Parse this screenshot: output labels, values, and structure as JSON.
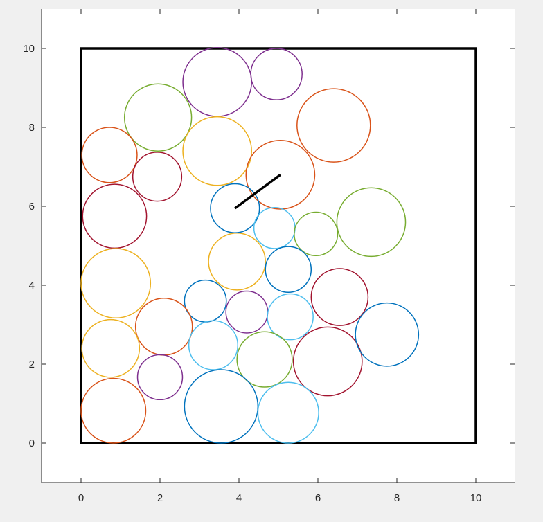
{
  "chart_data": {
    "type": "scatter",
    "title": "",
    "xlabel": "",
    "ylabel": "",
    "xlim": [
      -1,
      11
    ],
    "ylim": [
      -1,
      11
    ],
    "xticks": [
      0,
      2,
      4,
      6,
      8,
      10
    ],
    "yticks": [
      0,
      2,
      4,
      6,
      8,
      10
    ],
    "xtick_labels": [
      "0",
      "2",
      "4",
      "6",
      "8",
      "10"
    ],
    "ytick_labels": [
      "0",
      "2",
      "4",
      "6",
      "8",
      "10"
    ],
    "grid": false,
    "legend": "none",
    "boundary_box": {
      "x": [
        0,
        10
      ],
      "y": [
        0,
        10
      ],
      "color": "#000000"
    },
    "segment": {
      "x": [
        3.9,
        5.05
      ],
      "y": [
        5.95,
        6.8
      ],
      "color": "#000000"
    },
    "colors": {
      "blue": "#0072BD",
      "orange": "#D95319",
      "yellow": "#EDB120",
      "purple": "#7E2F8E",
      "green": "#77AC30",
      "cyan": "#4DBEEE",
      "darkred": "#A2142F"
    },
    "circles": [
      {
        "x": 3.45,
        "y": 9.15,
        "r": 0.87,
        "color": "purple"
      },
      {
        "x": 4.95,
        "y": 9.35,
        "r": 0.65,
        "color": "purple"
      },
      {
        "x": 1.95,
        "y": 8.25,
        "r": 0.85,
        "color": "green"
      },
      {
        "x": 6.4,
        "y": 8.05,
        "r": 0.93,
        "color": "orange"
      },
      {
        "x": 0.72,
        "y": 7.3,
        "r": 0.7,
        "color": "orange"
      },
      {
        "x": 3.45,
        "y": 7.4,
        "r": 0.87,
        "color": "yellow"
      },
      {
        "x": 1.93,
        "y": 6.75,
        "r": 0.62,
        "color": "darkred"
      },
      {
        "x": 5.05,
        "y": 6.8,
        "r": 0.87,
        "color": "orange"
      },
      {
        "x": 0.85,
        "y": 5.75,
        "r": 0.81,
        "color": "darkred"
      },
      {
        "x": 3.9,
        "y": 5.95,
        "r": 0.62,
        "color": "blue"
      },
      {
        "x": 4.9,
        "y": 5.45,
        "r": 0.52,
        "color": "cyan"
      },
      {
        "x": 5.95,
        "y": 5.3,
        "r": 0.55,
        "color": "green"
      },
      {
        "x": 7.35,
        "y": 5.6,
        "r": 0.87,
        "color": "green"
      },
      {
        "x": 3.95,
        "y": 4.6,
        "r": 0.72,
        "color": "yellow"
      },
      {
        "x": 5.25,
        "y": 4.4,
        "r": 0.58,
        "color": "blue"
      },
      {
        "x": 0.88,
        "y": 4.05,
        "r": 0.88,
        "color": "yellow"
      },
      {
        "x": 3.15,
        "y": 3.6,
        "r": 0.53,
        "color": "blue"
      },
      {
        "x": 4.2,
        "y": 3.32,
        "r": 0.53,
        "color": "purple"
      },
      {
        "x": 5.3,
        "y": 3.2,
        "r": 0.58,
        "color": "cyan"
      },
      {
        "x": 6.55,
        "y": 3.7,
        "r": 0.72,
        "color": "darkred"
      },
      {
        "x": 2.1,
        "y": 2.95,
        "r": 0.72,
        "color": "orange"
      },
      {
        "x": 3.35,
        "y": 2.48,
        "r": 0.62,
        "color": "cyan"
      },
      {
        "x": 0.75,
        "y": 2.4,
        "r": 0.73,
        "color": "yellow"
      },
      {
        "x": 4.65,
        "y": 2.12,
        "r": 0.7,
        "color": "green"
      },
      {
        "x": 6.25,
        "y": 2.07,
        "r": 0.87,
        "color": "darkred"
      },
      {
        "x": 7.75,
        "y": 2.75,
        "r": 0.8,
        "color": "blue"
      },
      {
        "x": 2.0,
        "y": 1.67,
        "r": 0.57,
        "color": "purple"
      },
      {
        "x": 0.82,
        "y": 0.82,
        "r": 0.82,
        "color": "orange"
      },
      {
        "x": 3.55,
        "y": 0.93,
        "r": 0.93,
        "color": "blue"
      },
      {
        "x": 5.25,
        "y": 0.77,
        "r": 0.77,
        "color": "cyan"
      }
    ]
  }
}
